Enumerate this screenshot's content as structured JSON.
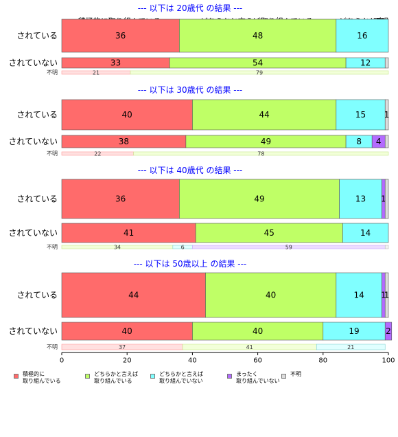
{
  "chart_data": {
    "type": "bar",
    "orientation": "horizontal",
    "stacked": true,
    "xlim": [
      0,
      100
    ],
    "xticks": [
      "0",
      "20",
      "40",
      "60",
      "80",
      "100"
    ],
    "grid": false,
    "legend_position": "bottom",
    "column_headers": [
      "積極的に取り組んでいる",
      "どちらかと言えば取り組んでいる",
      "どちらかと言",
      "不明"
    ],
    "categories_legend": [
      {
        "label": "積極的に\n取り組んでいる",
        "color": "#ff6b6b"
      },
      {
        "label": "どちらかと言えば\n取り組んでいる",
        "color": "#bfff66"
      },
      {
        "label": "どちらかと言えば\n取り組んでいない",
        "color": "#80ffff"
      },
      {
        "label": "まったく\n取り組んでいない",
        "color": "#b36bff"
      },
      {
        "label": "不明",
        "color": "#dddddd"
      }
    ],
    "panels": [
      {
        "title": "--- 以下は 20歳代 の結果 ---",
        "rows": [
          {
            "label": "されている",
            "values": [
              36,
              48,
              16,
              0,
              0
            ],
            "value_labels": [
              "36",
              "48",
              "16",
              "",
              ""
            ]
          },
          {
            "label": "されていない",
            "values": [
              33,
              54,
              12,
              0,
              1
            ],
            "value_labels": [
              "33",
              "54",
              "12",
              "",
              ""
            ]
          }
        ],
        "unknown_row": {
          "label": "不明",
          "values": [
            21,
            79,
            0,
            0,
            0
          ],
          "value_labels": [
            "21",
            "79",
            "",
            "",
            ""
          ]
        }
      },
      {
        "title": "--- 以下は 30歳代 の結果 ---",
        "rows": [
          {
            "label": "されている",
            "values": [
              40,
              44,
              15,
              0,
              1
            ],
            "value_labels": [
              "40",
              "44",
              "15",
              "",
              "1"
            ]
          },
          {
            "label": "されていない",
            "values": [
              38,
              49,
              8,
              4,
              1
            ],
            "value_labels": [
              "38",
              "49",
              "8",
              "4",
              ""
            ]
          }
        ],
        "unknown_row": {
          "label": "不明",
          "values": [
            22,
            78,
            0,
            0,
            0
          ],
          "value_labels": [
            "22",
            "78",
            "",
            "",
            ""
          ]
        }
      },
      {
        "title": "--- 以下は 40歳代 の結果 ---",
        "rows": [
          {
            "label": "されている",
            "values": [
              36,
              49,
              13,
              1,
              1
            ],
            "value_labels": [
              "36",
              "49",
              "13",
              "1",
              ""
            ]
          },
          {
            "label": "されていない",
            "values": [
              41,
              45,
              14,
              0,
              0
            ],
            "value_labels": [
              "41",
              "45",
              "14",
              "",
              ""
            ]
          }
        ],
        "unknown_row": {
          "label": "不明",
          "values": [
            0,
            34,
            6,
            59,
            1
          ],
          "value_labels": [
            "",
            "34",
            "6",
            "59",
            ""
          ]
        }
      },
      {
        "title": "--- 以下は 50歳以上 の結果 ---",
        "rows": [
          {
            "label": "されている",
            "values": [
              44,
              40,
              14,
              1,
              1
            ],
            "value_labels": [
              "44",
              "40",
              "14",
              "1",
              "1"
            ]
          },
          {
            "label": "されていない",
            "values": [
              40,
              40,
              19,
              2,
              0
            ],
            "value_labels": [
              "40",
              "40",
              "19",
              "2",
              ""
            ]
          }
        ],
        "unknown_row": {
          "label": "不明",
          "values": [
            37,
            41,
            21,
            0,
            0
          ],
          "value_labels": [
            "37",
            "41",
            "21",
            "",
            ""
          ]
        }
      }
    ]
  }
}
